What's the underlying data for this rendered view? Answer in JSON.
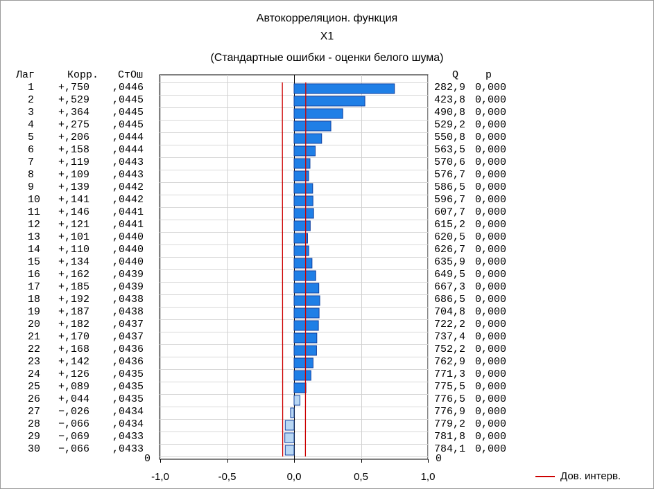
{
  "title": {
    "line1": "Автокорреляцион. функция",
    "line2": "X1",
    "line3": "(Стандартные ошибки - оценки белого шума)"
  },
  "table": {
    "left_headers": [
      "Лаг",
      "Корр.",
      "СтОш"
    ],
    "right_headers": [
      "Q",
      "p"
    ],
    "zero_label": "0",
    "rows": [
      {
        "lag": "1",
        "corr": "+,750",
        "se": ",0446",
        "q": "282,9",
        "p": "0,000"
      },
      {
        "lag": "2",
        "corr": "+,529",
        "se": ",0445",
        "q": "423,8",
        "p": "0,000"
      },
      {
        "lag": "3",
        "corr": "+,364",
        "se": ",0445",
        "q": "490,8",
        "p": "0,000"
      },
      {
        "lag": "4",
        "corr": "+,275",
        "se": ",0445",
        "q": "529,2",
        "p": "0,000"
      },
      {
        "lag": "5",
        "corr": "+,206",
        "se": ",0444",
        "q": "550,8",
        "p": "0,000"
      },
      {
        "lag": "6",
        "corr": "+,158",
        "se": ",0444",
        "q": "563,5",
        "p": "0,000"
      },
      {
        "lag": "7",
        "corr": "+,119",
        "se": ",0443",
        "q": "570,6",
        "p": "0,000"
      },
      {
        "lag": "8",
        "corr": "+,109",
        "se": ",0443",
        "q": "576,7",
        "p": "0,000"
      },
      {
        "lag": "9",
        "corr": "+,139",
        "se": ",0442",
        "q": "586,5",
        "p": "0,000"
      },
      {
        "lag": "10",
        "corr": "+,141",
        "se": ",0442",
        "q": "596,7",
        "p": "0,000"
      },
      {
        "lag": "11",
        "corr": "+,146",
        "se": ",0441",
        "q": "607,7",
        "p": "0,000"
      },
      {
        "lag": "12",
        "corr": "+,121",
        "se": ",0441",
        "q": "615,2",
        "p": "0,000"
      },
      {
        "lag": "13",
        "corr": "+,101",
        "se": ",0440",
        "q": "620,5",
        "p": "0,000"
      },
      {
        "lag": "14",
        "corr": "+,110",
        "se": ",0440",
        "q": "626,7",
        "p": "0,000"
      },
      {
        "lag": "15",
        "corr": "+,134",
        "se": ",0440",
        "q": "635,9",
        "p": "0,000"
      },
      {
        "lag": "16",
        "corr": "+,162",
        "se": ",0439",
        "q": "649,5",
        "p": "0,000"
      },
      {
        "lag": "17",
        "corr": "+,185",
        "se": ",0439",
        "q": "667,3",
        "p": "0,000"
      },
      {
        "lag": "18",
        "corr": "+,192",
        "se": ",0438",
        "q": "686,5",
        "p": "0,000"
      },
      {
        "lag": "19",
        "corr": "+,187",
        "se": ",0438",
        "q": "704,8",
        "p": "0,000"
      },
      {
        "lag": "20",
        "corr": "+,182",
        "se": ",0437",
        "q": "722,2",
        "p": "0,000"
      },
      {
        "lag": "21",
        "corr": "+,170",
        "se": ",0437",
        "q": "737,4",
        "p": "0,000"
      },
      {
        "lag": "22",
        "corr": "+,168",
        "se": ",0436",
        "q": "752,2",
        "p": "0,000"
      },
      {
        "lag": "23",
        "corr": "+,142",
        "se": ",0436",
        "q": "762,9",
        "p": "0,000"
      },
      {
        "lag": "24",
        "corr": "+,126",
        "se": ",0435",
        "q": "771,3",
        "p": "0,000"
      },
      {
        "lag": "25",
        "corr": "+,089",
        "se": ",0435",
        "q": "775,5",
        "p": "0,000"
      },
      {
        "lag": "26",
        "corr": "+,044",
        "se": ",0435",
        "q": "776,5",
        "p": "0,000"
      },
      {
        "lag": "27",
        "corr": "−,026",
        "se": ",0434",
        "q": "776,9",
        "p": "0,000"
      },
      {
        "lag": "28",
        "corr": "−,066",
        "se": ",0434",
        "q": "779,2",
        "p": "0,000"
      },
      {
        "lag": "29",
        "corr": "−,069",
        "se": ",0433",
        "q": "781,8",
        "p": "0,000"
      },
      {
        "lag": "30",
        "corr": "−,066",
        "se": ",0433",
        "q": "784,1",
        "p": "0,000"
      }
    ]
  },
  "legend": {
    "label": "Дов. интерв.",
    "color": "#cc0000"
  },
  "chart_data": {
    "type": "bar",
    "orientation": "horizontal",
    "categories": [
      "1",
      "2",
      "3",
      "4",
      "5",
      "6",
      "7",
      "8",
      "9",
      "10",
      "11",
      "12",
      "13",
      "14",
      "15",
      "16",
      "17",
      "18",
      "19",
      "20",
      "21",
      "22",
      "23",
      "24",
      "25",
      "26",
      "27",
      "28",
      "29",
      "30"
    ],
    "values": [
      0.75,
      0.529,
      0.364,
      0.275,
      0.206,
      0.158,
      0.119,
      0.109,
      0.139,
      0.141,
      0.146,
      0.121,
      0.101,
      0.11,
      0.134,
      0.162,
      0.185,
      0.192,
      0.187,
      0.182,
      0.17,
      0.168,
      0.142,
      0.126,
      0.089,
      0.044,
      -0.026,
      -0.066,
      -0.069,
      -0.066
    ],
    "std_errors": [
      0.0446,
      0.0445,
      0.0445,
      0.0445,
      0.0444,
      0.0444,
      0.0443,
      0.0443,
      0.0442,
      0.0442,
      0.0441,
      0.0441,
      0.044,
      0.044,
      0.044,
      0.0439,
      0.0439,
      0.0438,
      0.0438,
      0.0437,
      0.0437,
      0.0436,
      0.0436,
      0.0435,
      0.0435,
      0.0435,
      0.0434,
      0.0434,
      0.0433,
      0.0433
    ],
    "confidence_factor": 1.96,
    "xlim": [
      -1.0,
      1.0
    ],
    "xticks": [
      "-1,0",
      "-0,5",
      "0,0",
      "0,5",
      "1,0"
    ],
    "xtick_values": [
      -1.0,
      -0.5,
      0.0,
      0.5,
      1.0
    ],
    "bar_color_strong": "#1f7fe6",
    "bar_color_weak": "#b9d7f3",
    "bar_edge": "#1040a0",
    "ci_color": "#cc0000",
    "grid": true,
    "legend_position": "bottom-right"
  }
}
